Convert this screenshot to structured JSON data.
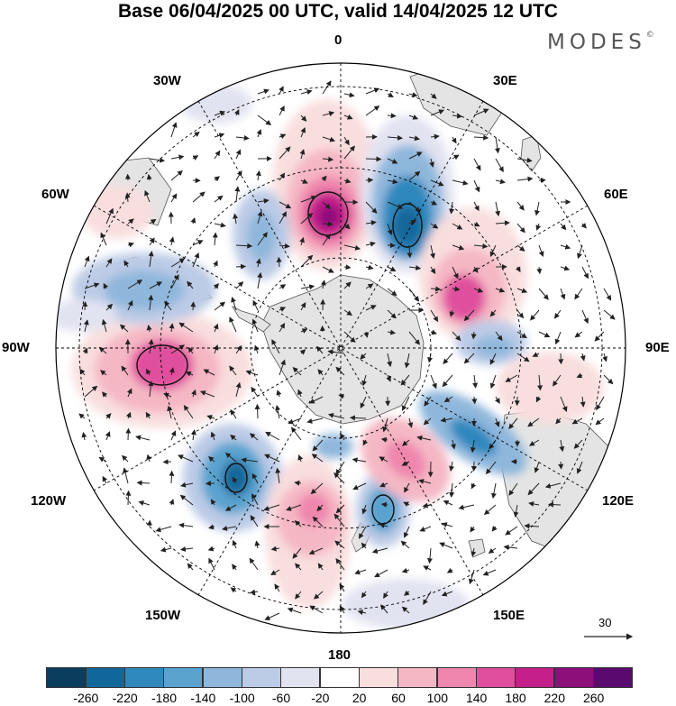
{
  "title": "Base 06/04/2025 00 UTC, valid 14/04/2025 12 UTC",
  "brand": {
    "name": "MODES",
    "mark": "©"
  },
  "map": {
    "projection": "south-polar-stereographic",
    "longitude_labels": {
      "top": "0",
      "top_right": "30E",
      "right_upper": "60E",
      "right": "90E",
      "right_lower": "120E",
      "bottom_right": "150E",
      "bottom": "180",
      "bottom_left": "150W",
      "left_lower": "120W",
      "left": "90W",
      "left_upper": "60W",
      "top_left": "30W"
    },
    "reference_vector": "30",
    "colors": {
      "land": "#e4e4e4",
      "coast": "#555555",
      "grid": "#000000"
    }
  },
  "colorbar": {
    "ticks": [
      "-260",
      "-220",
      "-180",
      "-140",
      "-100",
      "-60",
      "-20",
      "20",
      "60",
      "100",
      "140",
      "180",
      "220",
      "260"
    ],
    "colors": [
      "#0b3d5e",
      "#12679a",
      "#2f88be",
      "#5aa3cf",
      "#8fb7dc",
      "#bccbe6",
      "#e2e3f1",
      "#ffffff",
      "#f9dede",
      "#f5b7c4",
      "#ef86ad",
      "#e04f9d",
      "#c41f8a",
      "#8c0f7a",
      "#5a0a6e"
    ]
  }
}
